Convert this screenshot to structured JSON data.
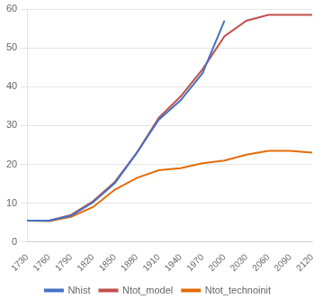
{
  "chart_data": {
    "type": "line",
    "series": [
      {
        "name": "Nhist",
        "color": "#4472C4",
        "x": [
          1730,
          1760,
          1790,
          1820,
          1850,
          1880,
          1910,
          1940,
          1970,
          2000
        ],
        "values": [
          5.5,
          5.5,
          6.8,
          10.2,
          15.2,
          23.0,
          31.5,
          36.5,
          43.5,
          57.0
        ]
      },
      {
        "name": "Ntot_model",
        "color": "#C0504D",
        "x": [
          1730,
          1760,
          1790,
          1820,
          1850,
          1880,
          1910,
          1940,
          1970,
          2000,
          2030,
          2060,
          2090,
          2120
        ],
        "values": [
          5.5,
          5.5,
          7.0,
          10.5,
          15.5,
          23.0,
          32.0,
          37.5,
          44.5,
          53.0,
          57.0,
          58.5,
          58.5,
          58.5
        ]
      },
      {
        "name": "Ntot_technoinit",
        "color": "#E36C09",
        "x": [
          1730,
          1760,
          1790,
          1820,
          1850,
          1880,
          1910,
          1940,
          1970,
          2000,
          2030,
          2060,
          2090,
          2120
        ],
        "values": [
          5.5,
          5.4,
          6.5,
          9.0,
          13.5,
          16.5,
          18.5,
          19.0,
          20.3,
          21.0,
          22.5,
          23.5,
          23.5,
          23.0
        ]
      }
    ],
    "xlim": [
      1730,
      2120
    ],
    "xticks": [
      1730,
      1760,
      1790,
      1820,
      1850,
      1880,
      1910,
      1940,
      1970,
      2000,
      2030,
      2060,
      2090,
      2120
    ],
    "ylim": [
      0,
      60
    ],
    "yticks": [
      0,
      10,
      20,
      30,
      40,
      50,
      60
    ],
    "grid": "y",
    "legend": "bottom"
  }
}
